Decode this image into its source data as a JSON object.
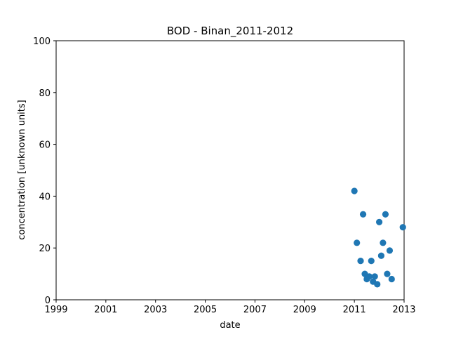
{
  "chart_data": {
    "type": "scatter",
    "title": "BOD - Binan_2011-2012",
    "xlabel": "date",
    "ylabel": "concentration [unknown units]",
    "xlim": [
      1999,
      2013
    ],
    "ylim": [
      0,
      100
    ],
    "xticks": [
      1999,
      2001,
      2003,
      2005,
      2007,
      2009,
      2011,
      2013
    ],
    "yticks": [
      0,
      20,
      40,
      60,
      80,
      100
    ],
    "grid": false,
    "marker_color": "#1f77b4",
    "points": [
      {
        "x": 2011.0,
        "y": 42
      },
      {
        "x": 2011.1,
        "y": 22
      },
      {
        "x": 2011.25,
        "y": 15
      },
      {
        "x": 2011.35,
        "y": 33
      },
      {
        "x": 2011.42,
        "y": 10
      },
      {
        "x": 2011.5,
        "y": 8
      },
      {
        "x": 2011.6,
        "y": 9
      },
      {
        "x": 2011.68,
        "y": 15
      },
      {
        "x": 2011.75,
        "y": 7
      },
      {
        "x": 2011.82,
        "y": 9
      },
      {
        "x": 2011.92,
        "y": 6
      },
      {
        "x": 2012.0,
        "y": 30
      },
      {
        "x": 2012.08,
        "y": 17
      },
      {
        "x": 2012.15,
        "y": 22
      },
      {
        "x": 2012.25,
        "y": 33
      },
      {
        "x": 2012.32,
        "y": 10
      },
      {
        "x": 2012.42,
        "y": 19
      },
      {
        "x": 2012.5,
        "y": 8
      },
      {
        "x": 2012.95,
        "y": 28
      }
    ]
  }
}
